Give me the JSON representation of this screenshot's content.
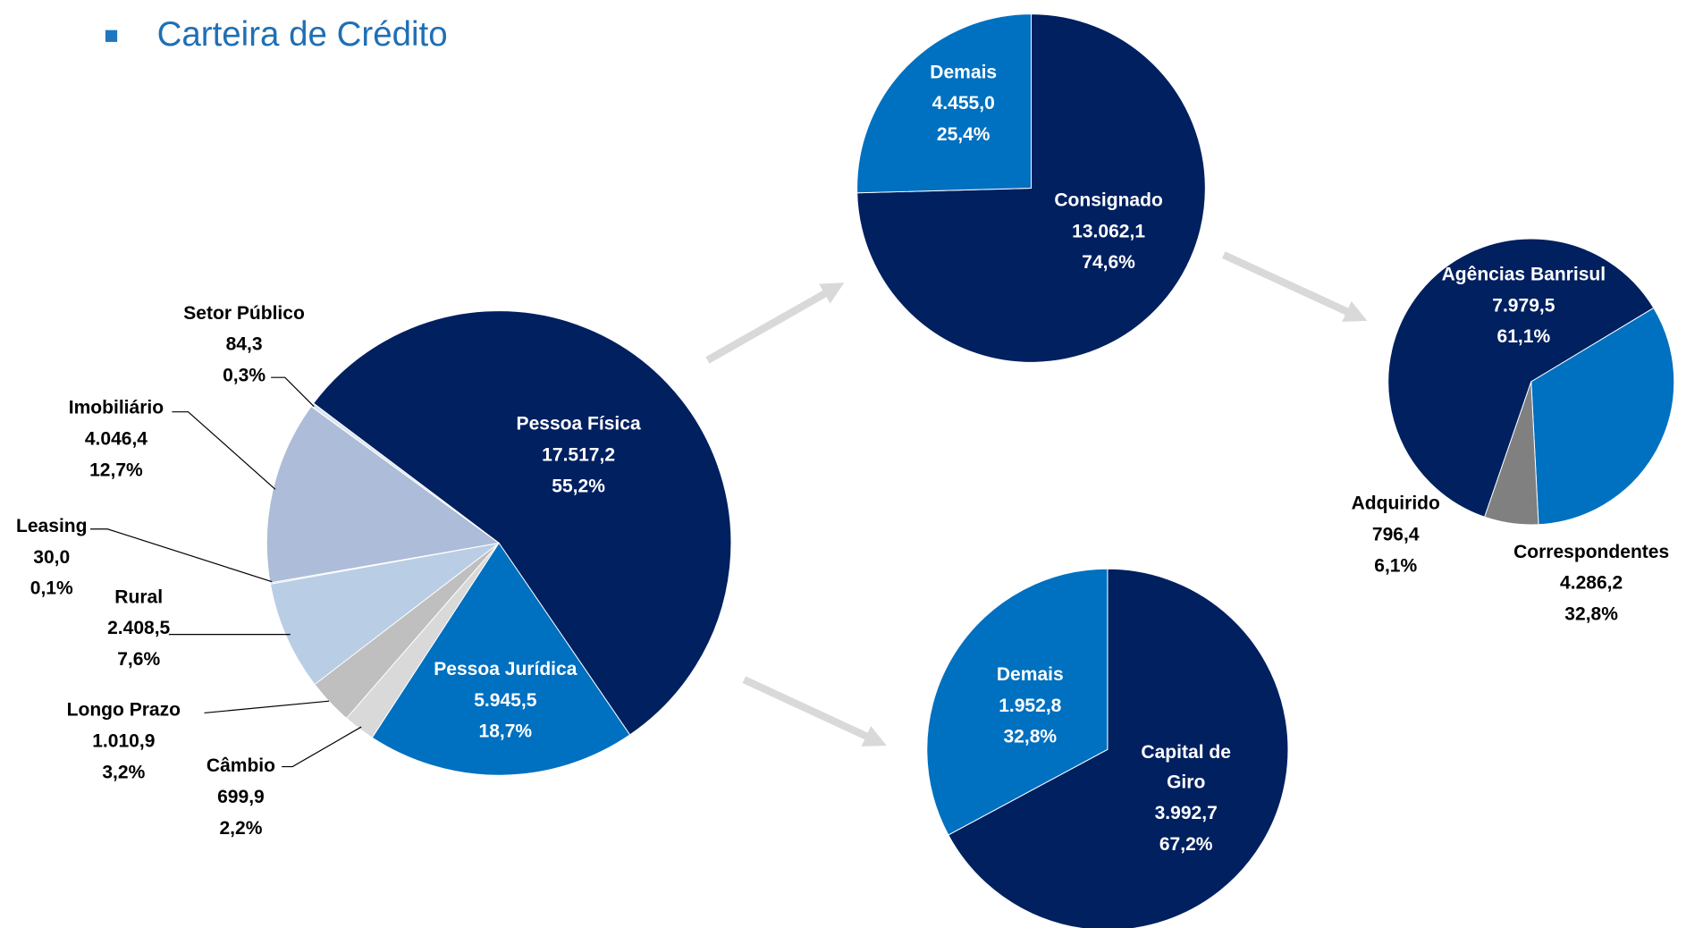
{
  "title": "Carteira de Crédito",
  "chart_data": [
    {
      "type": "pie",
      "categories": [
        "Pessoa Física",
        "Pessoa Jurídica",
        "Câmbio",
        "Longo Prazo",
        "Rural",
        "Leasing",
        "Imobiliário",
        "Setor Público"
      ],
      "values": [
        17517.2,
        5945.5,
        699.9,
        1010.9,
        2408.5,
        30.0,
        4046.4,
        84.3
      ],
      "value_labels": [
        "17.517,2",
        "5.945,5",
        "699,9",
        "1.010,9",
        "2.408,5",
        "30,0",
        "4.046,4",
        "84,3"
      ],
      "percents": [
        55.2,
        18.7,
        2.2,
        3.2,
        7.6,
        0.1,
        12.7,
        0.3
      ],
      "percent_labels": [
        "55,2%",
        "18,7%",
        "2,2%",
        "3,2%",
        "7,6%",
        "0,1%",
        "12,7%",
        "0,3%"
      ],
      "colors": [
        "#002060",
        "#0070c0",
        "#d9d9d9",
        "#bfbfbf",
        "#b9cde5",
        "#c6d4e8",
        "#adbcd8",
        "#dce6f2"
      ],
      "start_angle": -53
    },
    {
      "type": "pie",
      "categories": [
        "Consignado",
        "Demais"
      ],
      "values": [
        13062.1,
        4455.0
      ],
      "value_labels": [
        "13.062,1",
        "4.455,0"
      ],
      "percents": [
        74.6,
        25.4
      ],
      "percent_labels": [
        "74,6%",
        "25,4%"
      ],
      "colors": [
        "#002060",
        "#0070c0"
      ],
      "start_angle": 0
    },
    {
      "type": "pie",
      "categories": [
        "Agências Banrisul",
        "Correspondentes",
        "Adquirido"
      ],
      "values": [
        7979.5,
        4286.2,
        796.4
      ],
      "value_labels": [
        "7.979,5",
        "4.286,2",
        "796,4"
      ],
      "percents": [
        61.1,
        32.8,
        6.1
      ],
      "percent_labels": [
        "61,1%",
        "32,8%",
        "6,1%"
      ],
      "colors": [
        "#002060",
        "#0070c0",
        "#808080"
      ],
      "start_angle": -161
    },
    {
      "type": "pie",
      "categories": [
        "Capital de Giro",
        "Demais"
      ],
      "values": [
        3992.7,
        1952.8
      ],
      "value_labels": [
        "3.992,7",
        "1.952,8"
      ],
      "percents": [
        67.2,
        32.8
      ],
      "percent_labels": [
        "67,2%",
        "32,8%"
      ],
      "colors": [
        "#002060",
        "#0070c0"
      ],
      "start_angle": 0
    }
  ]
}
